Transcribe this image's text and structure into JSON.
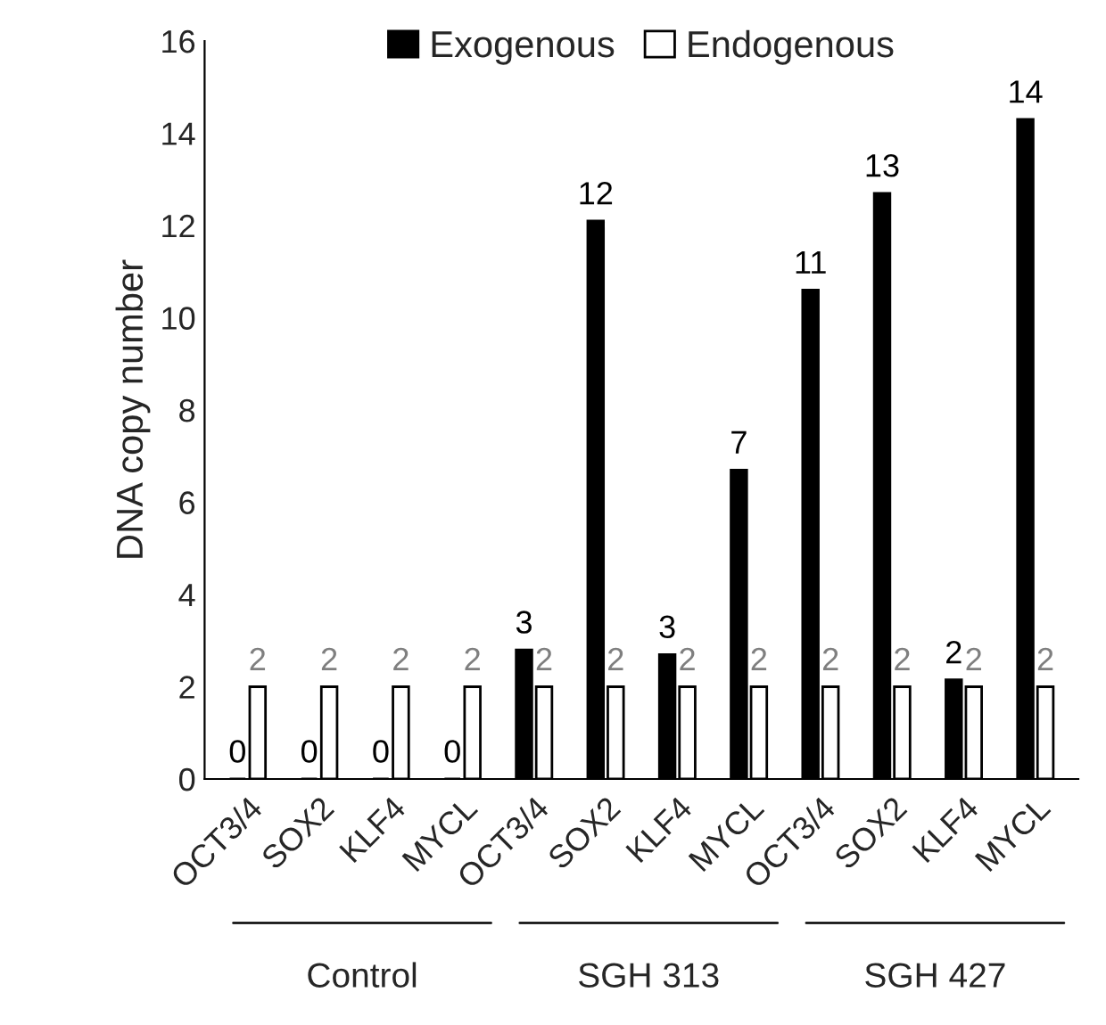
{
  "chart_data": {
    "type": "bar",
    "ylabel": "DNA copy number",
    "categories": [
      "OCT3/4",
      "SOX2",
      "KLF4",
      "MYCL",
      "OCT3/4",
      "SOX2",
      "KLF4",
      "MYCL",
      "OCT3/4",
      "SOX2",
      "KLF4",
      "MYCL"
    ],
    "series": [
      {
        "name": "Exogenous",
        "color": "#000000",
        "values": [
          0,
          0,
          0,
          0,
          2.8,
          12.1,
          2.7,
          6.7,
          10.6,
          12.7,
          2.15,
          14.3
        ],
        "value_labels": [
          "0",
          "0",
          "0",
          "0",
          "3",
          "12",
          "3",
          "7",
          "11",
          "13",
          "2",
          "14"
        ]
      },
      {
        "name": "Endogenous",
        "color": "#ffffff",
        "values": [
          2,
          2,
          2,
          2,
          2,
          2,
          2,
          2,
          2,
          2,
          2,
          2
        ],
        "value_labels": [
          "2",
          "2",
          "2",
          "2",
          "2",
          "2",
          "2",
          "2",
          "2",
          "2",
          "2",
          "2"
        ]
      }
    ],
    "ylim": [
      0,
      16
    ],
    "yticks": [
      0,
      2,
      4,
      6,
      8,
      10,
      12,
      14,
      16
    ],
    "grid": false,
    "legend": "top",
    "annotations": [
      "Control",
      "SGH 313",
      "SGH 427"
    ]
  }
}
